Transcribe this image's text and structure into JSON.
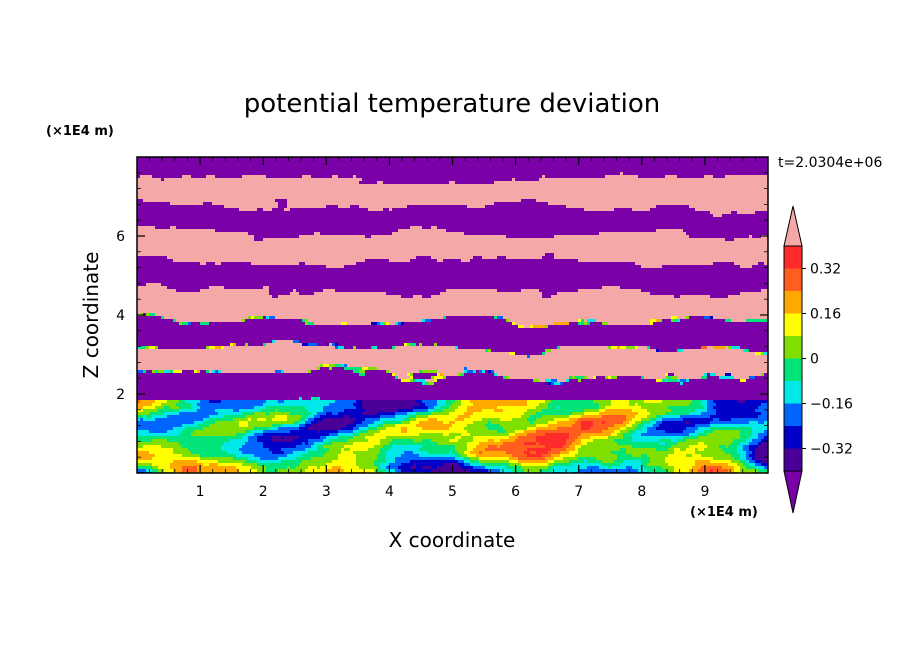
{
  "chart_data": {
    "type": "heatmap",
    "title": "potential temperature deviation",
    "xlabel": "X coordinate",
    "ylabel": "Z coordinate",
    "x_unit_label": "(×1E4 m)",
    "y_unit_label": "(×1E4 m)",
    "time_label": "t=2.0304e+06",
    "xlim": [
      0,
      10
    ],
    "ylim": [
      0,
      8
    ],
    "xticks": [
      "1",
      "2",
      "3",
      "4",
      "5",
      "6",
      "7",
      "8",
      "9"
    ],
    "yticks": [
      "2",
      "4",
      "6"
    ],
    "colorbar": {
      "labels": [
        "0.32",
        "0.16",
        "0",
        "−0.16",
        "−0.32"
      ],
      "label_values": [
        0.32,
        0.16,
        0,
        -0.16,
        -0.32
      ],
      "levels_top_to_bottom": [
        0.4,
        0.32,
        0.24,
        0.16,
        0.08,
        0,
        -0.08,
        -0.16,
        -0.24,
        -0.32,
        -0.4
      ],
      "colors_top_to_bottom": [
        "#f4a8a8",
        "#ff2a2a",
        "#ff5e1e",
        "#ffa800",
        "#ffff00",
        "#7fe000",
        "#00e47a",
        "#00e8e8",
        "#0064ff",
        "#0000c8",
        "#4a0098",
        "#7a00a8"
      ]
    },
    "colors": {
      "over": "#f4a8a8",
      "under": "#7a00a8",
      "upper_field_light": "#f4a8a8",
      "upper_field_dark": "#7a00a8"
    }
  }
}
